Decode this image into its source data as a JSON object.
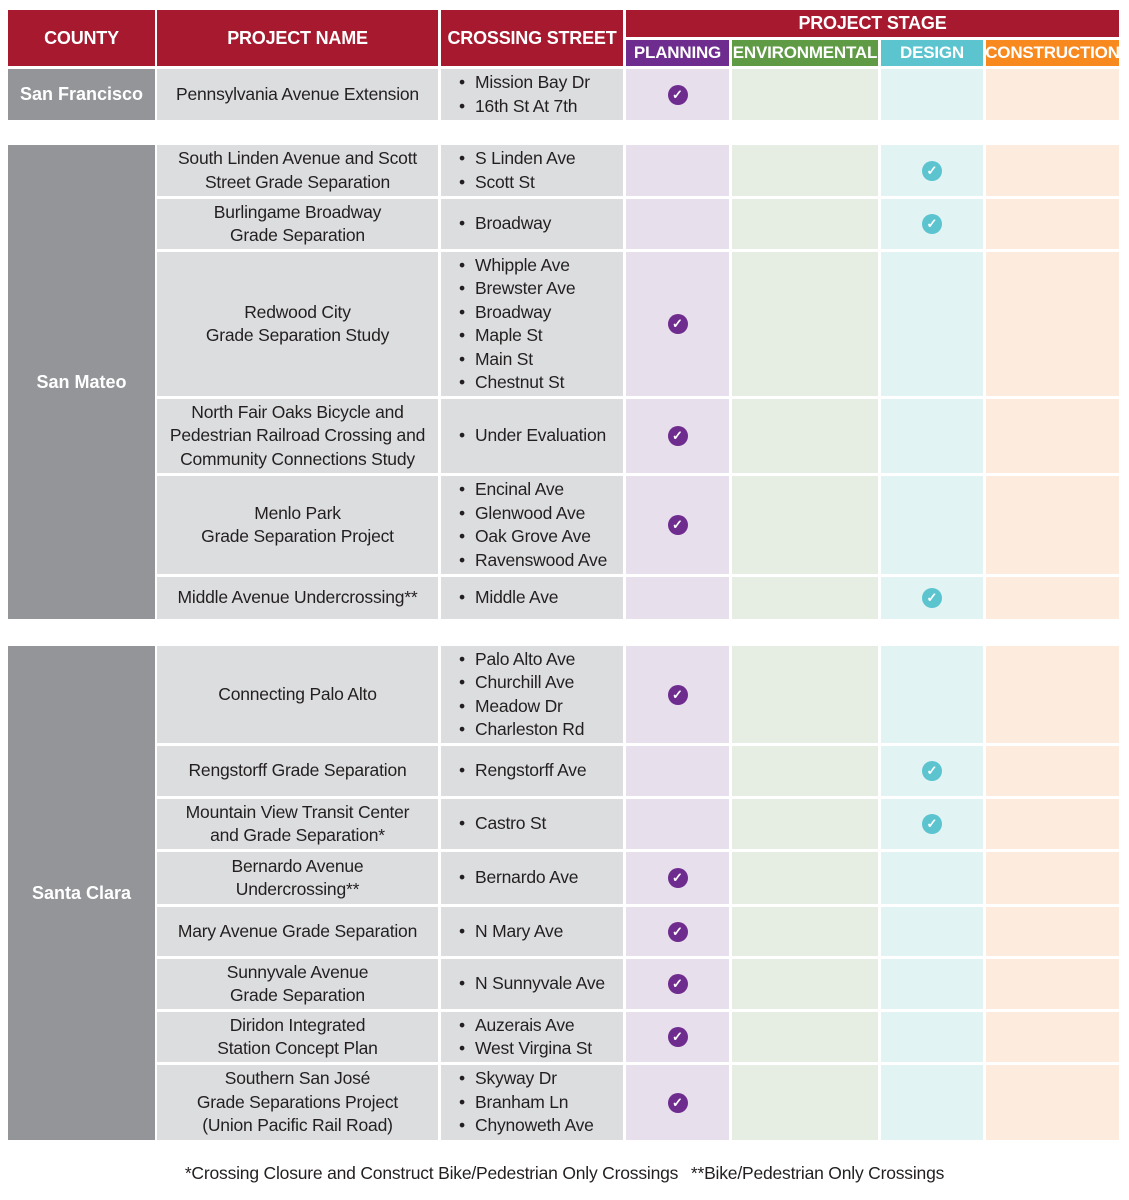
{
  "header": {
    "county": "COUNTY",
    "project_name": "PROJECT NAME",
    "crossing_street": "CROSSING STREET",
    "project_stage": "PROJECT STAGE",
    "stages": [
      {
        "key": "planning",
        "label": "PLANNING",
        "color": "#6f2c8f",
        "light": "#e8dfec"
      },
      {
        "key": "environmental",
        "label": "ENVIRONMENTAL",
        "color": "#5f9a45",
        "light": "#e6ede2"
      },
      {
        "key": "design",
        "label": "DESIGN",
        "color": "#5bc4cf",
        "light": "#e2f3f4"
      },
      {
        "key": "construction",
        "label": "CONSTRUCTION",
        "color": "#f7891f",
        "light": "#fdebdd"
      }
    ]
  },
  "check_icon": "check-circle-icon",
  "groups": [
    {
      "county": "San Francisco",
      "rows": [
        {
          "project": [
            "Pennsylvania Avenue Extension"
          ],
          "streets": [
            "Mission Bay Dr",
            "16th St At 7th"
          ],
          "stage": "planning"
        }
      ]
    },
    {
      "county": "San Mateo",
      "rows": [
        {
          "project": [
            "South Linden Avenue and Scott",
            "Street Grade Separation"
          ],
          "streets": [
            "S Linden Ave",
            "Scott St"
          ],
          "stage": "design"
        },
        {
          "project": [
            "Burlingame Broadway",
            "Grade Separation"
          ],
          "streets": [
            "Broadway"
          ],
          "stage": "design"
        },
        {
          "project": [
            "Redwood City",
            "Grade Separation Study"
          ],
          "streets": [
            "Whipple Ave",
            "Brewster Ave",
            "Broadway",
            "Maple St",
            "Main St",
            "Chestnut St"
          ],
          "stage": "planning"
        },
        {
          "project": [
            "North Fair Oaks Bicycle and",
            "Pedestrian Railroad Crossing and",
            "Community Connections Study"
          ],
          "streets": [
            "Under Evaluation"
          ],
          "stage": "planning"
        },
        {
          "project": [
            "Menlo Park",
            "Grade Separation Project"
          ],
          "streets": [
            "Encinal Ave",
            "Glenwood Ave",
            "Oak Grove Ave",
            "Ravenswood Ave"
          ],
          "stage": "planning"
        },
        {
          "project": [
            "Middle Avenue Undercrossing**"
          ],
          "streets": [
            "Middle Ave"
          ],
          "stage": "design"
        }
      ]
    },
    {
      "county": "Santa Clara",
      "rows": [
        {
          "project": [
            "Connecting Palo Alto"
          ],
          "streets": [
            "Palo Alto Ave",
            "Churchill Ave",
            "Meadow Dr",
            "Charleston Rd"
          ],
          "stage": "planning"
        },
        {
          "project": [
            "Rengstorff Grade Separation"
          ],
          "streets": [
            "Rengstorff Ave"
          ],
          "stage": "design"
        },
        {
          "project": [
            "Mountain View Transit Center",
            "and Grade Separation*"
          ],
          "streets": [
            "Castro St"
          ],
          "stage": "design"
        },
        {
          "project": [
            "Bernardo Avenue",
            "Undercrossing**"
          ],
          "streets": [
            "Bernardo Ave"
          ],
          "stage": "planning"
        },
        {
          "project": [
            "Mary Avenue Grade Separation"
          ],
          "streets": [
            "N Mary Ave"
          ],
          "stage": "planning"
        },
        {
          "project": [
            "Sunnyvale Avenue",
            "Grade Separation"
          ],
          "streets": [
            "N Sunnyvale Ave"
          ],
          "stage": "planning"
        },
        {
          "project": [
            "Diridon Integrated",
            "Station Concept Plan"
          ],
          "streets": [
            "Auzerais Ave",
            "West Virgina St"
          ],
          "stage": "planning"
        },
        {
          "project": [
            "Southern San José",
            "Grade Separations Project",
            "(Union Pacific Rail Road)"
          ],
          "streets": [
            "Skyway Dr",
            "Branham Ln",
            "Chynoweth Ave"
          ],
          "stage": "planning"
        }
      ]
    }
  ],
  "footnotes": [
    "*Crossing Closure and Construct Bike/Pedestrian Only Crossings",
    "**Bike/Pedestrian Only Crossings"
  ]
}
